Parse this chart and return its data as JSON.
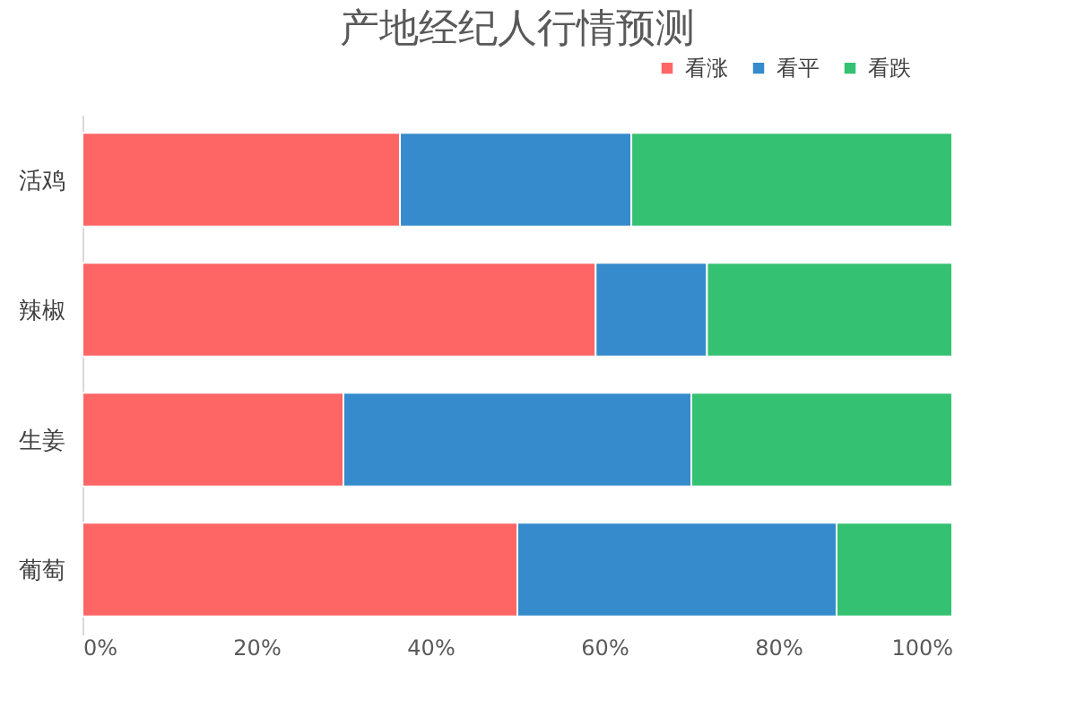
{
  "chart_data": {
    "type": "bar",
    "title": "产地经纪人行情预测",
    "orientation": "horizontal",
    "stacked": true,
    "categories": [
      "活鸡",
      "辣椒",
      "生姜",
      "葡萄"
    ],
    "series": [
      {
        "name": "看涨",
        "color": "#fe6565",
        "values": [
          36.5,
          59.0,
          30.0,
          50.0
        ]
      },
      {
        "name": "看平",
        "color": "#358bcb",
        "values": [
          26.6,
          12.8,
          40.0,
          36.7
        ]
      },
      {
        "name": "看跌",
        "color": "#35c172",
        "values": [
          36.9,
          28.2,
          30.0,
          13.3
        ]
      }
    ],
    "xlim": [
      0,
      100
    ],
    "xticks": [
      {
        "value": 0,
        "label": "0%"
      },
      {
        "value": 20,
        "label": "20%"
      },
      {
        "value": 40,
        "label": "40%"
      },
      {
        "value": 60,
        "label": "60%"
      },
      {
        "value": 80,
        "label": "80%"
      },
      {
        "value": 100,
        "label": "100%"
      }
    ],
    "grid": false,
    "legend": "top right"
  }
}
